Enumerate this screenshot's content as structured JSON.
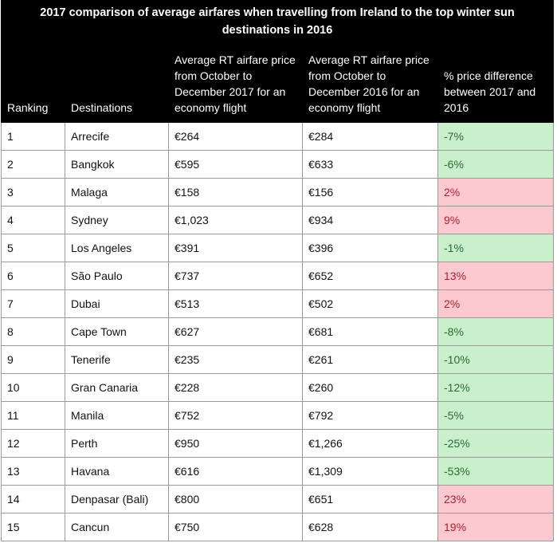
{
  "title": "2017 comparison of average airfares when travelling from Ireland to the top winter sun destinations in 2016",
  "columns": {
    "ranking": "Ranking",
    "destinations": "Destinations",
    "price_2017": "Average RT airfare price from October to December 2017 for an economy flight",
    "price_2016": "Average RT airfare price from October to December 2016 for an economy flight",
    "difference": "% price difference between 2017 and 2016"
  },
  "colors": {
    "header_bg": "#000000",
    "decrease_bg": "#c9efcc",
    "decrease_text": "#2a6b30",
    "increase_bg": "#fbc9cf",
    "increase_text": "#b0202f"
  },
  "rows": [
    {
      "rank": "1",
      "destination": "Arrecife",
      "p2017": "€264",
      "p2016": "€284",
      "diff": "-7%"
    },
    {
      "rank": "2",
      "destination": "Bangkok",
      "p2017": "€595",
      "p2016": "€633",
      "diff": "-6%"
    },
    {
      "rank": "3",
      "destination": "Malaga",
      "p2017": "€158",
      "p2016": "€156",
      "diff": "2%"
    },
    {
      "rank": "4",
      "destination": "Sydney",
      "p2017": "€1,023",
      "p2016": "€934",
      "diff": "9%"
    },
    {
      "rank": "5",
      "destination": "Los Angeles",
      "p2017": "€391",
      "p2016": "€396",
      "diff": "-1%"
    },
    {
      "rank": "6",
      "destination": "São Paulo",
      "p2017": "€737",
      "p2016": "€652",
      "diff": "13%"
    },
    {
      "rank": "7",
      "destination": "Dubai",
      "p2017": "€513",
      "p2016": "€502",
      "diff": "2%"
    },
    {
      "rank": "8",
      "destination": "Cape Town",
      "p2017": "€627",
      "p2016": "€681",
      "diff": "-8%"
    },
    {
      "rank": "9",
      "destination": "Tenerife",
      "p2017": "€235",
      "p2016": "€261",
      "diff": "-10%"
    },
    {
      "rank": "10",
      "destination": "Gran Canaria",
      "p2017": "€228",
      "p2016": "€260",
      "diff": "-12%"
    },
    {
      "rank": "11",
      "destination": "Manila",
      "p2017": "€752",
      "p2016": "€792",
      "diff": "-5%"
    },
    {
      "rank": "12",
      "destination": "Perth",
      "p2017": "€950",
      "p2016": "€1,266",
      "diff": "-25%"
    },
    {
      "rank": "13",
      "destination": "Havana",
      "p2017": "€616",
      "p2016": "€1,309",
      "diff": "-53%"
    },
    {
      "rank": "14",
      "destination": "Denpasar (Bali)",
      "p2017": "€800",
      "p2016": "€651",
      "diff": "23%"
    },
    {
      "rank": "15",
      "destination": "Cancun",
      "p2017": "€750",
      "p2016": "€628",
      "diff": "19%"
    }
  ]
}
